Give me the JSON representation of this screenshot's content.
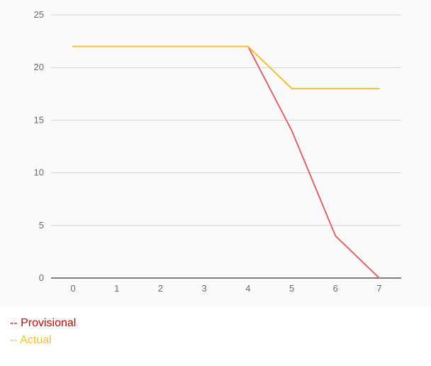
{
  "chart_data": {
    "type": "line",
    "x": [
      0,
      1,
      2,
      3,
      4,
      5,
      6,
      7
    ],
    "xlim": [
      0,
      7
    ],
    "ylim": [
      0,
      25
    ],
    "y_ticks": [
      0,
      5,
      10,
      15,
      20,
      25
    ],
    "x_ticks": [
      0,
      1,
      2,
      3,
      4,
      5,
      6,
      7
    ],
    "grid": true,
    "legend_placement": "bottom-left",
    "series": [
      {
        "name": "Provisional",
        "color": "#d9676a",
        "values": [
          22,
          22,
          22,
          22,
          22,
          14,
          4,
          0
        ]
      },
      {
        "name": "Actual",
        "color": "#f2c037",
        "values": [
          22,
          22,
          22,
          22,
          22,
          18,
          18,
          18
        ]
      }
    ]
  },
  "legend": {
    "items": [
      {
        "label": "-- Provisional",
        "color": "#cc0000"
      },
      {
        "label": "-- Actual",
        "color": "#f1c232"
      }
    ]
  }
}
